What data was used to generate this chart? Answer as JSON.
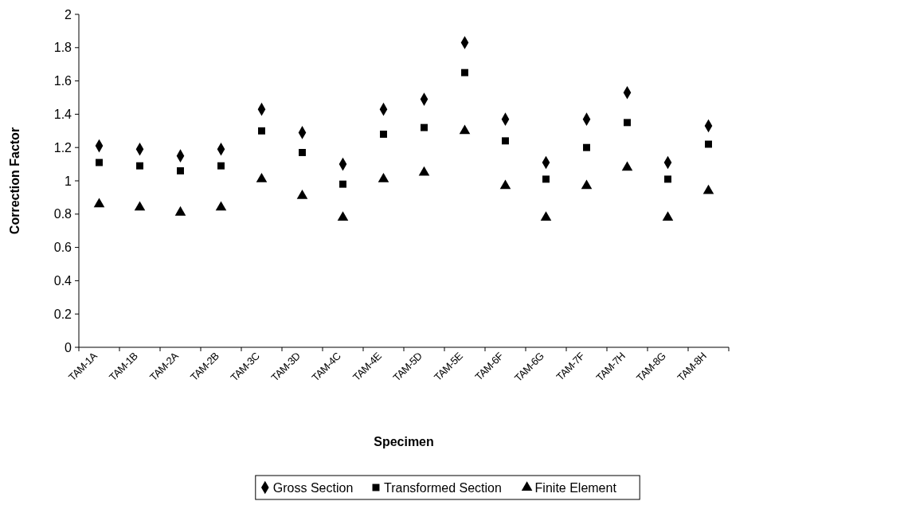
{
  "chart_data": {
    "type": "scatter",
    "xlabel": "Specimen",
    "ylabel": "Correction Factor",
    "categories": [
      "TAM-1A",
      "TAM-1B",
      "TAM-2A",
      "TAM-2B",
      "TAM-3C",
      "TAM-3D",
      "TAM-4C",
      "TAM-4E",
      "TAM-5D",
      "TAM-5E",
      "TAM-6F",
      "TAM-6G",
      "TAM-7F",
      "TAM-7H",
      "TAM-8G",
      "TAM-8H"
    ],
    "ylim": [
      0,
      2
    ],
    "yticks": [
      0,
      0.2,
      0.4,
      0.6,
      0.8,
      1,
      1.2,
      1.4,
      1.6,
      1.8,
      2
    ],
    "grid": false,
    "legend": "bottom",
    "series": [
      {
        "name": "Gross Section",
        "color": "#000000",
        "marker": "diamond",
        "values": [
          1.21,
          1.19,
          1.15,
          1.19,
          1.43,
          1.29,
          1.1,
          1.43,
          1.49,
          1.83,
          1.37,
          1.11,
          1.37,
          1.53,
          1.11,
          1.33
        ]
      },
      {
        "name": "Transformed Section",
        "color": "#000000",
        "marker": "square",
        "values": [
          1.11,
          1.09,
          1.06,
          1.09,
          1.3,
          1.17,
          0.98,
          1.28,
          1.32,
          1.65,
          1.24,
          1.01,
          1.2,
          1.35,
          1.01,
          1.22
        ]
      },
      {
        "name": "Finite Element",
        "color": "#000000",
        "marker": "triangle",
        "values": [
          0.86,
          0.84,
          0.81,
          0.84,
          1.01,
          0.91,
          0.78,
          1.01,
          1.05,
          1.3,
          0.97,
          0.78,
          0.97,
          1.08,
          0.78,
          0.94
        ]
      }
    ]
  }
}
